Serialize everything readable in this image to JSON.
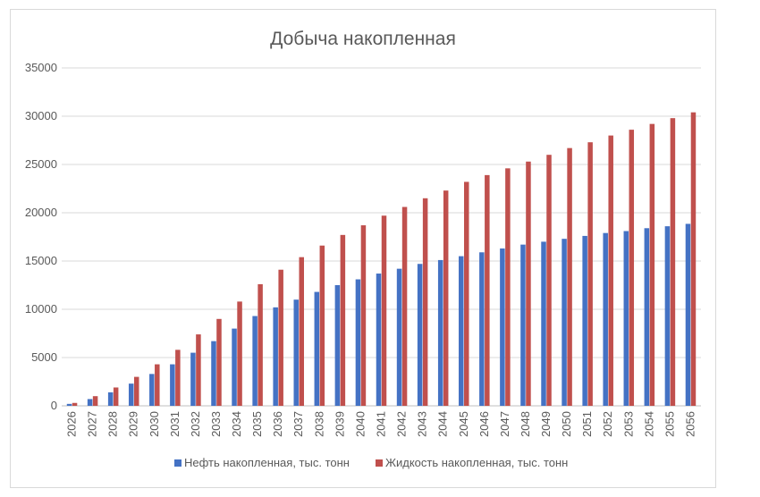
{
  "chart_data": {
    "type": "bar",
    "title": "Добыча накопленная",
    "xlabel": "",
    "ylabel": "",
    "ylim": [
      0,
      35000
    ],
    "yticks": [
      0,
      5000,
      10000,
      15000,
      20000,
      25000,
      30000,
      35000
    ],
    "grid": true,
    "legend_position": "bottom",
    "categories": [
      "2026",
      "2027",
      "2028",
      "2029",
      "2030",
      "2031",
      "2032",
      "2033",
      "2034",
      "2035",
      "2036",
      "2037",
      "2038",
      "2039",
      "2040",
      "2041",
      "2042",
      "2043",
      "2044",
      "2045",
      "2046",
      "2047",
      "2048",
      "2049",
      "2050",
      "2051",
      "2052",
      "2053",
      "2054",
      "2055",
      "2056"
    ],
    "series": [
      {
        "name": "Нефть накопленная, тыс. тонн",
        "color": "#4472c4",
        "values": [
          200,
          700,
          1400,
          2300,
          3300,
          4300,
          5500,
          6700,
          8000,
          9300,
          10200,
          11000,
          11800,
          12500,
          13100,
          13700,
          14200,
          14700,
          15100,
          15500,
          15900,
          16300,
          16700,
          17000,
          17300,
          17600,
          17900,
          18100,
          18400,
          18600,
          18850
        ]
      },
      {
        "name": "Жидкость накопленная, тыс. тонн",
        "color": "#c0504d",
        "values": [
          300,
          1000,
          1900,
          3000,
          4300,
          5800,
          7400,
          9000,
          10800,
          12600,
          14100,
          15400,
          16600,
          17700,
          18700,
          19700,
          20600,
          21500,
          22300,
          23200,
          23900,
          24600,
          25300,
          26000,
          26700,
          27300,
          28000,
          28600,
          29200,
          29800,
          30400
        ]
      }
    ]
  }
}
